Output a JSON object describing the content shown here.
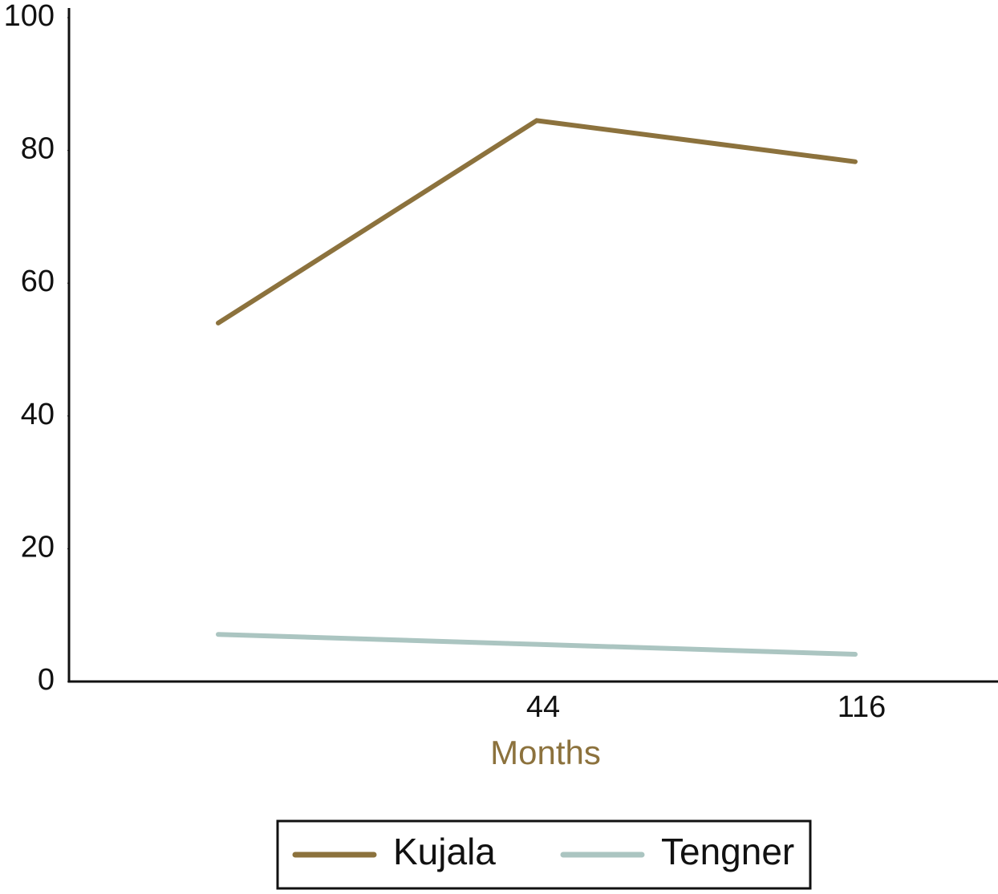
{
  "chart_data": {
    "type": "line",
    "x_label": "Months",
    "categories": [
      null,
      "44",
      "116"
    ],
    "series": [
      {
        "name": "Kujala",
        "color": "#8c723d",
        "values": [
          54,
          84.5,
          78.3
        ]
      },
      {
        "name": "Tengner",
        "color": "#abc5c1",
        "values": [
          7.1,
          5.6,
          4.1
        ]
      }
    ],
    "ylim": [
      0,
      100
    ],
    "yticks": [
      0,
      20,
      40,
      60,
      80,
      100
    ],
    "grid": false,
    "legend": "bottom"
  }
}
